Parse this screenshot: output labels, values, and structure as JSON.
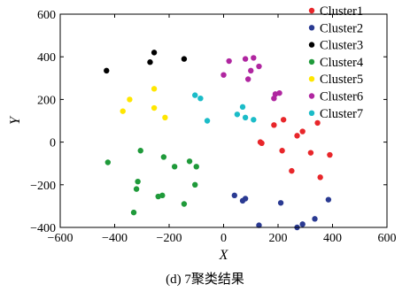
{
  "caption": "(d) 7聚类结果",
  "chart_data": {
    "type": "scatter",
    "title": "",
    "xlabel": "X",
    "ylabel": "Y",
    "xlim": [
      -600,
      600
    ],
    "ylim": [
      -400,
      600
    ],
    "xticks": [
      -600,
      -400,
      -200,
      0,
      200,
      400,
      600
    ],
    "yticks": [
      -400,
      -200,
      0,
      200,
      400,
      600
    ],
    "xtick_labels": [
      "−600",
      "−400",
      "−200",
      "0",
      "200",
      "400",
      "600"
    ],
    "ytick_labels": [
      "−400",
      "−200",
      "0",
      "200",
      "400",
      "600"
    ],
    "grid": false,
    "legend_position": "top-right",
    "series": [
      {
        "name": "Cluster1",
        "color": "#e8262a",
        "points": [
          [
            135,
            0
          ],
          [
            140,
            -5
          ],
          [
            185,
            80
          ],
          [
            220,
            105
          ],
          [
            215,
            -40
          ],
          [
            250,
            -135
          ],
          [
            270,
            30
          ],
          [
            290,
            50
          ],
          [
            320,
            -50
          ],
          [
            345,
            90
          ],
          [
            355,
            -165
          ],
          [
            390,
            -60
          ]
        ]
      },
      {
        "name": "Cluster2",
        "color": "#2a3a92",
        "points": [
          [
            40,
            -250
          ],
          [
            70,
            -275
          ],
          [
            80,
            -265
          ],
          [
            130,
            -390
          ],
          [
            210,
            -285
          ],
          [
            270,
            -400
          ],
          [
            290,
            -385
          ],
          [
            335,
            -360
          ],
          [
            385,
            -270
          ]
        ]
      },
      {
        "name": "Cluster3",
        "color": "#000000",
        "points": [
          [
            -430,
            335
          ],
          [
            -270,
            375
          ],
          [
            -255,
            420
          ],
          [
            -145,
            390
          ]
        ]
      },
      {
        "name": "Cluster4",
        "color": "#1f9a3a",
        "points": [
          [
            -425,
            -95
          ],
          [
            -330,
            -330
          ],
          [
            -320,
            -220
          ],
          [
            -315,
            -185
          ],
          [
            -305,
            -40
          ],
          [
            -240,
            -255
          ],
          [
            -225,
            -250
          ],
          [
            -220,
            -70
          ],
          [
            -180,
            -115
          ],
          [
            -145,
            -290
          ],
          [
            -125,
            -90
          ],
          [
            -105,
            -200
          ],
          [
            -100,
            -115
          ]
        ]
      },
      {
        "name": "Cluster5",
        "color": "#ffe600",
        "points": [
          [
            -370,
            145
          ],
          [
            -345,
            200
          ],
          [
            -255,
            250
          ],
          [
            -255,
            160
          ],
          [
            -215,
            115
          ]
        ]
      },
      {
        "name": "Cluster6",
        "color": "#b026a0",
        "points": [
          [
            0,
            315
          ],
          [
            20,
            380
          ],
          [
            80,
            390
          ],
          [
            90,
            295
          ],
          [
            100,
            335
          ],
          [
            110,
            395
          ],
          [
            130,
            355
          ],
          [
            185,
            205
          ],
          [
            190,
            225
          ],
          [
            205,
            230
          ]
        ]
      },
      {
        "name": "Cluster7",
        "color": "#1bbcc8",
        "points": [
          [
            -105,
            220
          ],
          [
            -85,
            205
          ],
          [
            -60,
            100
          ],
          [
            50,
            130
          ],
          [
            70,
            165
          ],
          [
            80,
            115
          ],
          [
            110,
            105
          ]
        ]
      }
    ]
  }
}
